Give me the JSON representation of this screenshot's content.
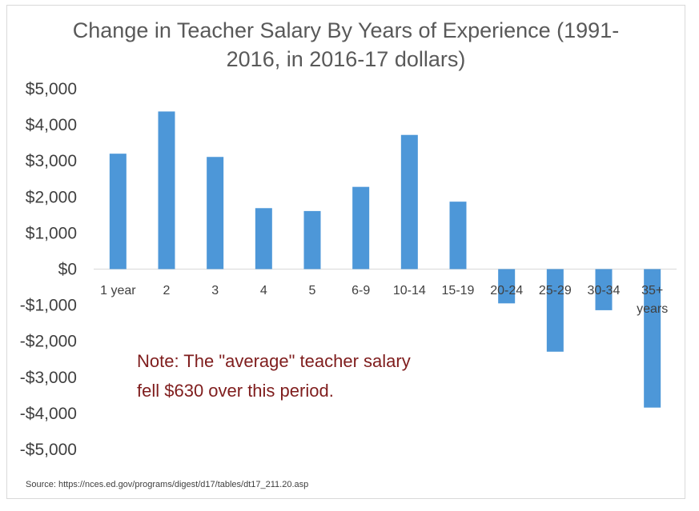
{
  "chart_data": {
    "type": "bar",
    "title_lines": [
      "Change in Teacher Salary By Years of Experience (1991-",
      "2016, in 2016-17 dollars)"
    ],
    "categories": [
      "1 year",
      "2",
      "3",
      "4",
      "5",
      "6-9",
      "10-14",
      "15-19",
      "20-24",
      "25-29",
      "30-34",
      "35+ years"
    ],
    "values": [
      3200,
      4370,
      3110,
      1690,
      1610,
      2280,
      3720,
      1870,
      -950,
      -2290,
      -1140,
      -3840
    ],
    "ylim": [
      -5000,
      5000
    ],
    "yticks": [
      5000,
      4000,
      3000,
      2000,
      1000,
      0,
      -1000,
      -2000,
      -3000,
      -4000,
      -5000
    ],
    "ytick_labels": [
      "$5,000",
      "$4,000",
      "$3,000",
      "$2,000",
      "$1,000",
      "$0",
      "-$1,000",
      "-$2,000",
      "-$3,000",
      "-$4,000",
      "-$5,000"
    ],
    "note_lines": [
      "Note: The \"average\" teacher salary",
      "fell $630 over this period."
    ],
    "source": "Source: https://nces.ed.gov/programs/digest/d17/tables/dt17_211.20.asp",
    "grid": false,
    "legend": "none",
    "bar_color": "#4d97d8",
    "note_color": "#7f1d1d"
  }
}
